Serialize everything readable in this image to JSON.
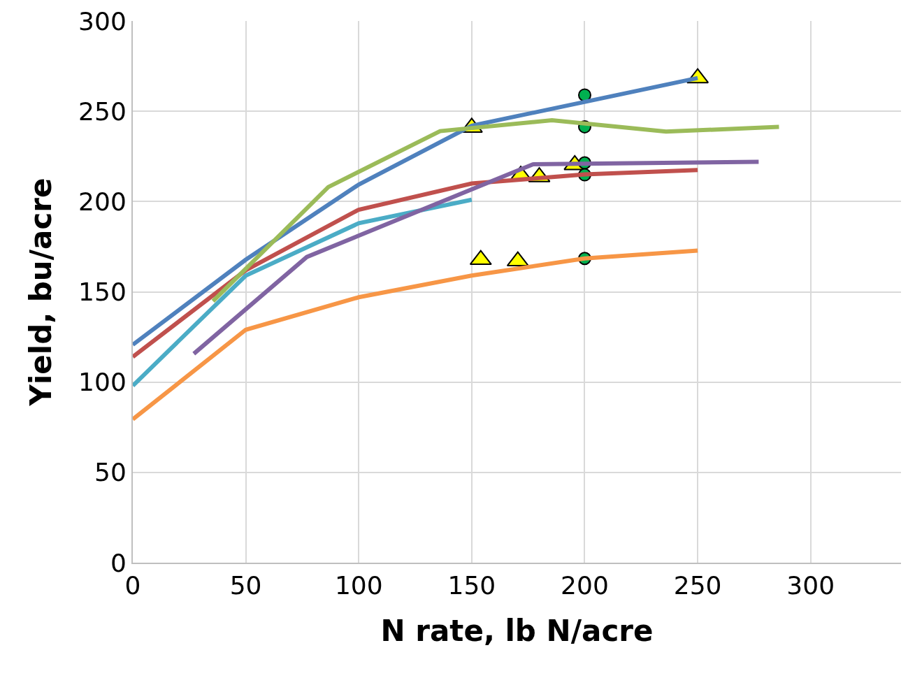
{
  "chart_data": {
    "type": "line",
    "xlabel": "N rate, lb N/acre",
    "ylabel": "Yield, bu/acre",
    "xlim": [
      0,
      340
    ],
    "xticks": [
      0,
      50,
      100,
      150,
      200,
      250,
      300
    ],
    "ylim": [
      0,
      300
    ],
    "yticks": [
      0,
      50,
      100,
      150,
      200,
      250,
      300
    ],
    "grid": true,
    "line_style": "solid",
    "series": [
      {
        "color": "#4f81bd",
        "marker": "none",
        "x": [
          0,
          50,
          100,
          150,
          250
        ],
        "values": [
          120.7,
          167.8,
          209.4,
          242,
          268.4
        ]
      },
      {
        "color": "#c0504d",
        "marker": "none",
        "x": [
          0,
          50,
          100,
          150,
          200,
          250
        ],
        "values": [
          114,
          162,
          195.5,
          210,
          215,
          217.5
        ]
      },
      {
        "color": "#4bacc6",
        "marker": "none",
        "x": [
          0,
          50,
          100,
          150
        ],
        "values": [
          98,
          159,
          188,
          201
        ]
      },
      {
        "color": "#9bbb59",
        "marker": "none",
        "x": [
          35.5,
          86.5,
          136,
          185.5,
          236,
          286
        ],
        "values": [
          144.8,
          208,
          239,
          245,
          238.7,
          241.4
        ]
      },
      {
        "color": "#8064a2",
        "marker": "none",
        "x": [
          27,
          77,
          177,
          277
        ],
        "values": [
          115.7,
          169.3,
          220.6,
          222
        ]
      },
      {
        "color": "#f79646",
        "marker": "none",
        "x": [
          0,
          50,
          100,
          150,
          200,
          250
        ],
        "values": [
          79.4,
          129,
          147,
          159,
          168.5,
          172.8
        ]
      },
      {
        "type": "scatter",
        "color": "#ffff00",
        "marker": "triangle",
        "x": [
          150,
          250,
          171.7,
          179.9,
          195.6,
          154,
          170.4
        ],
        "values": [
          241,
          268.4,
          214.4,
          213.6,
          220.3,
          167.8,
          167
        ]
      },
      {
        "type": "scatter",
        "color": "#00b050",
        "marker": "circle",
        "x": [
          200,
          200,
          200,
          200,
          200
        ],
        "values": [
          259,
          241.4,
          221.4,
          214.8,
          168.5
        ]
      }
    ]
  }
}
